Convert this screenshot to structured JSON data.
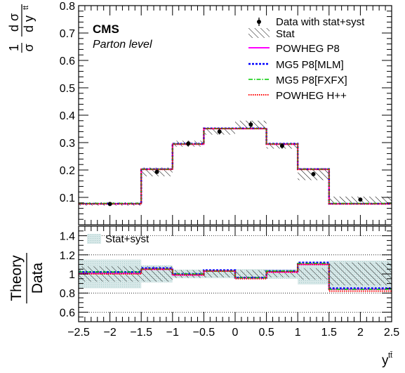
{
  "experiment": "CMS",
  "level": "Parton level",
  "colors": {
    "data": "#000000",
    "stat_hatch": "#000000",
    "powheg_p8": "#ff00ff",
    "mg5_mlm": "#0000ff",
    "mg5_fxfx": "#00cc00",
    "powheg_hpp": "#ff0000",
    "stat_syst_band": "#cfe3e3"
  },
  "chart_data": [
    {
      "type": "histogram",
      "panel": "main",
      "ylabel": "1/σ dσ/dy^tt̄",
      "xlim": [
        -2.5,
        2.5
      ],
      "ylim": [
        0.0,
        0.8
      ],
      "yticks": [
        "0.1",
        "0.2",
        "0.3",
        "0.4",
        "0.5",
        "0.6",
        "0.7",
        "0.8"
      ],
      "bin_edges": [
        -2.5,
        -1.5,
        -1.0,
        -0.5,
        0.0,
        0.5,
        1.0,
        1.5,
        2.5
      ],
      "legend_position": "top-right",
      "series": [
        {
          "name": "Data with stat+syst",
          "style": "points",
          "values": [
            0.076,
            0.193,
            0.296,
            0.34,
            0.366,
            0.288,
            0.185,
            0.092
          ],
          "errors": [
            0.004,
            0.007,
            0.01,
            0.01,
            0.012,
            0.01,
            0.008,
            0.005
          ]
        },
        {
          "name": "Stat",
          "style": "hatch",
          "values": [
            0.076,
            0.193,
            0.296,
            0.34,
            0.366,
            0.288,
            0.185,
            0.092
          ],
          "half_widths": [
            0.006,
            0.016,
            0.011,
            0.011,
            0.014,
            0.01,
            0.022,
            0.011
          ]
        },
        {
          "name": "POWHEG P8",
          "style": "solid",
          "values": [
            0.077,
            0.203,
            0.294,
            0.351,
            0.351,
            0.294,
            0.203,
            0.077
          ]
        },
        {
          "name": "MG5 P8[MLM]",
          "style": "dashed",
          "values": [
            0.077,
            0.203,
            0.296,
            0.352,
            0.352,
            0.296,
            0.203,
            0.077
          ]
        },
        {
          "name": "MG5 P8[FXFX]",
          "style": "dashdot",
          "values": [
            0.078,
            0.203,
            0.295,
            0.351,
            0.351,
            0.295,
            0.203,
            0.078
          ]
        },
        {
          "name": "POWHEG H++",
          "style": "dotted",
          "values": [
            0.076,
            0.202,
            0.294,
            0.351,
            0.351,
            0.294,
            0.202,
            0.076
          ]
        }
      ]
    },
    {
      "type": "histogram",
      "panel": "ratio",
      "ylabel": [
        "Theory",
        "Data"
      ],
      "xlabel": "y^tt̄",
      "xlim": [
        -2.5,
        2.5
      ],
      "ylim": [
        0.5,
        1.5
      ],
      "yticks": [
        "0.6",
        "0.8",
        "1",
        "1.2",
        "1.4"
      ],
      "xticks": [
        "−2.5",
        "−2",
        "−1.5",
        "−1",
        "−0.5",
        "0",
        "0.5",
        "1",
        "1.5",
        "2",
        "2.5"
      ],
      "gridlines_y": [
        0.6,
        0.8,
        1.2,
        1.4
      ],
      "bin_edges": [
        -2.5,
        -1.5,
        -1.0,
        -0.5,
        0.0,
        0.5,
        1.0,
        1.5,
        2.5
      ],
      "legend_position": "top-left",
      "series": [
        {
          "name": "Stat+syst",
          "style": "band",
          "half_widths": [
            0.15,
            0.09,
            0.045,
            0.045,
            0.05,
            0.05,
            0.11,
            0.14
          ]
        },
        {
          "name": "Stat",
          "style": "hatch",
          "half_widths": [
            0.08,
            0.08,
            0.04,
            0.035,
            0.04,
            0.035,
            0.06,
            0.12
          ]
        },
        {
          "name": "POWHEG P8",
          "style": "solid",
          "values": [
            1.01,
            1.05,
            0.99,
            1.03,
            0.96,
            1.02,
            1.1,
            0.84
          ]
        },
        {
          "name": "MG5 P8[MLM]",
          "style": "dashed",
          "values": [
            1.02,
            1.06,
            1.0,
            1.04,
            0.96,
            1.03,
            1.12,
            0.85
          ]
        },
        {
          "name": "MG5 P8[FXFX]",
          "style": "dashdot",
          "values": [
            1.02,
            1.05,
            1.0,
            1.03,
            0.96,
            1.03,
            1.11,
            0.84
          ]
        },
        {
          "name": "POWHEG H++",
          "style": "dotted",
          "values": [
            1.0,
            1.05,
            0.99,
            1.03,
            0.95,
            1.02,
            1.1,
            0.82
          ]
        }
      ]
    }
  ]
}
